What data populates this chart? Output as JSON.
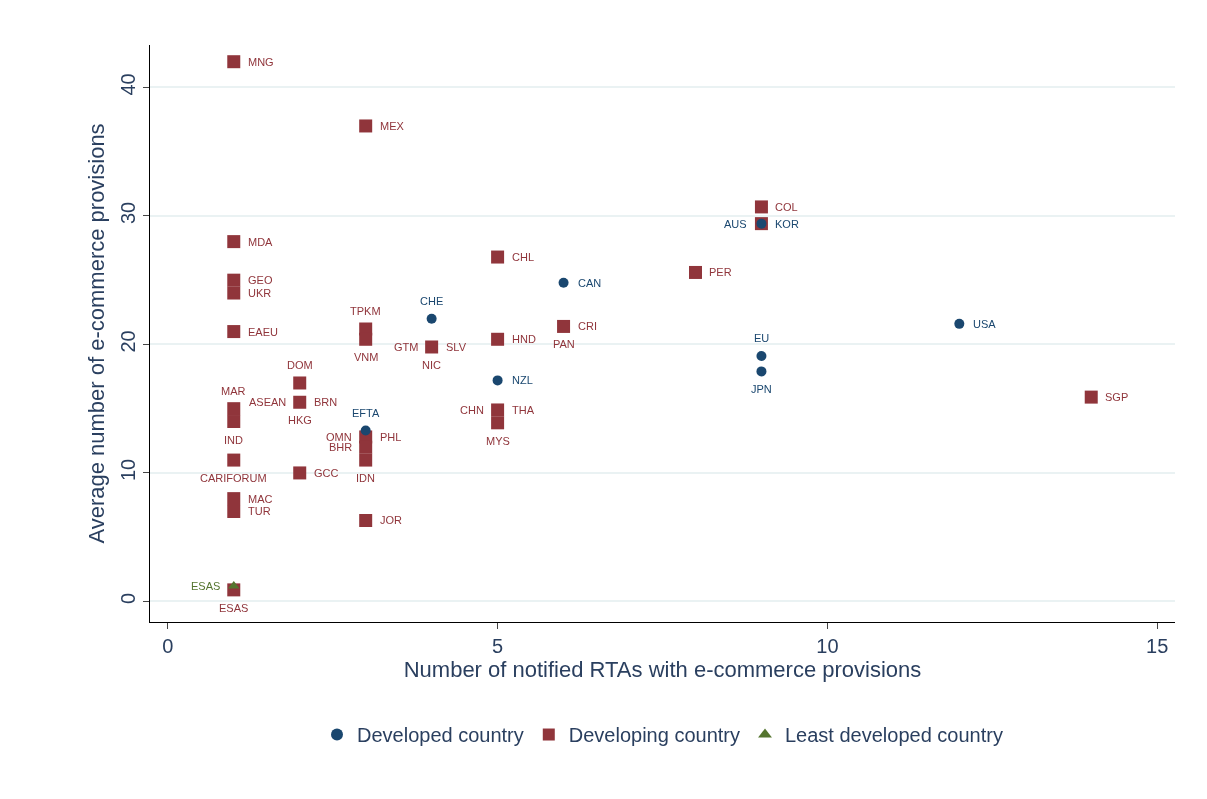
{
  "chart_data": {
    "type": "scatter",
    "xlabel": "Number of notified RTAs with e-commerce provisions",
    "ylabel": "Average number of e-commerce provisions",
    "xlim": [
      -0.27,
      15.27
    ],
    "xticks": [
      0,
      5,
      10,
      15
    ],
    "ylim": [
      -1.6,
      43.3
    ],
    "yticks": [
      0,
      10,
      20,
      30,
      40
    ],
    "grid": "y",
    "legend": "bottom",
    "series": [
      {
        "name": "Developed country",
        "color": "#1a476f",
        "marker": "circle",
        "x": [
          4,
          6,
          5,
          3,
          9,
          12,
          9,
          9
        ],
        "values": [
          22.0,
          24.8,
          17.2,
          13.3,
          29.4,
          21.6,
          19.1,
          17.9
        ]
      },
      {
        "name": "Developing country",
        "color": "#90353b",
        "marker": "square",
        "x": [
          1,
          3,
          1,
          1,
          1,
          1,
          3,
          3,
          4,
          5,
          5,
          6,
          2,
          2,
          1,
          1,
          1,
          2,
          1,
          1,
          3,
          3,
          3,
          3,
          5,
          5,
          9,
          9,
          8,
          14,
          1
        ],
        "values": [
          42.0,
          37.0,
          28.0,
          25.0,
          24.0,
          21.0,
          21.2,
          20.4,
          19.8,
          26.8,
          20.4,
          21.4,
          17.0,
          15.5,
          15.0,
          14.0,
          11.0,
          10.0,
          8.0,
          7.0,
          6.3,
          12.8,
          12.0,
          11.0,
          14.9,
          13.9,
          30.7,
          29.4,
          25.6,
          15.9,
          0.9
        ]
      },
      {
        "name": "Least developed country",
        "color": "#55752f",
        "marker": "triangle",
        "x": [
          1
        ],
        "values": [
          1.2
        ]
      }
    ],
    "annotations": [
      {
        "text": "MNG",
        "x": 1,
        "y": 42.0
      },
      {
        "text": "MEX",
        "x": 3,
        "y": 37.0
      },
      {
        "text": "MDA",
        "x": 1,
        "y": 28.0
      },
      {
        "text": "GEO",
        "x": 1,
        "y": 25.0
      },
      {
        "text": "UKR",
        "x": 1,
        "y": 24.0
      },
      {
        "text": "EAEU",
        "x": 1,
        "y": 21.0
      },
      {
        "text": "TPKM",
        "x": 3,
        "y": 21.2
      },
      {
        "text": "VNM",
        "x": 3,
        "y": 20.4
      },
      {
        "text": "GTM",
        "x": 4,
        "y": 19.8
      },
      {
        "text": "SLV",
        "x": 4,
        "y": 19.8
      },
      {
        "text": "NIC",
        "x": 4,
        "y": 19.8
      },
      {
        "text": "CHL",
        "x": 5,
        "y": 26.8
      },
      {
        "text": "HND",
        "x": 5,
        "y": 20.4
      },
      {
        "text": "CRI",
        "x": 6,
        "y": 21.4
      },
      {
        "text": "PAN",
        "x": 6,
        "y": 21.4
      },
      {
        "text": "DOM",
        "x": 2,
        "y": 17.0
      },
      {
        "text": "ASEAN",
        "x": 2,
        "y": 15.5
      },
      {
        "text": "BRN",
        "x": 2,
        "y": 15.5
      },
      {
        "text": "HKG",
        "x": 2,
        "y": 15.5
      },
      {
        "text": "MAR",
        "x": 1,
        "y": 15.0
      },
      {
        "text": "IND",
        "x": 1,
        "y": 14.0
      },
      {
        "text": "CARIFORUM",
        "x": 1,
        "y": 11.0
      },
      {
        "text": "GCC",
        "x": 2,
        "y": 10.0
      },
      {
        "text": "MAC",
        "x": 1,
        "y": 8.0
      },
      {
        "text": "TUR",
        "x": 1,
        "y": 7.0
      },
      {
        "text": "JOR",
        "x": 3,
        "y": 6.3
      },
      {
        "text": "OMN",
        "x": 3,
        "y": 12.8
      },
      {
        "text": "PHL",
        "x": 3,
        "y": 12.8
      },
      {
        "text": "BHR",
        "x": 3,
        "y": 12.0
      },
      {
        "text": "IDN",
        "x": 3,
        "y": 11.0
      },
      {
        "text": "CHN",
        "x": 5,
        "y": 14.9
      },
      {
        "text": "THA",
        "x": 5,
        "y": 14.9
      },
      {
        "text": "MYS",
        "x": 5,
        "y": 13.9
      },
      {
        "text": "COL",
        "x": 9,
        "y": 30.7
      },
      {
        "text": "KOR",
        "x": 9,
        "y": 29.4
      },
      {
        "text": "PER",
        "x": 8,
        "y": 25.6
      },
      {
        "text": "SGP",
        "x": 14,
        "y": 15.9
      },
      {
        "text": "ESAS",
        "x": 1,
        "y": 0.9
      },
      {
        "text": "ESAS",
        "x": 1,
        "y": 1.2
      },
      {
        "text": "CHE",
        "x": 4,
        "y": 22.0
      },
      {
        "text": "CAN",
        "x": 6,
        "y": 24.8
      },
      {
        "text": "NZL",
        "x": 5,
        "y": 17.2
      },
      {
        "text": "EFTA",
        "x": 3,
        "y": 13.3
      },
      {
        "text": "AUS",
        "x": 9,
        "y": 29.4
      },
      {
        "text": "USA",
        "x": 12,
        "y": 21.6
      },
      {
        "text": "EU",
        "x": 9,
        "y": 19.1
      },
      {
        "text": "JPN",
        "x": 9,
        "y": 17.9
      }
    ]
  }
}
